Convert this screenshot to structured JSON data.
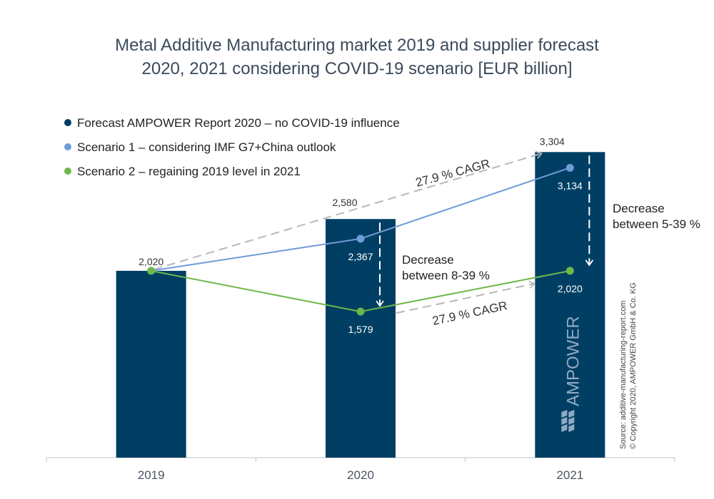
{
  "chart_data": {
    "type": "bar",
    "title_line1": "Metal Additive Manufacturing market 2019 and supplier forecast",
    "title_line2": "2020, 2021 considering COVID-19 scenario [EUR billion]",
    "categories": [
      "2019",
      "2020",
      "2021"
    ],
    "ylim": [
      0,
      4000
    ],
    "grid": false,
    "legend_position": "top-left",
    "series": [
      {
        "name": "Forecast AMPOWER Report 2020 – no COVID-19 influence",
        "kind": "bar",
        "color": "#003f63",
        "values": [
          2020,
          2580,
          3304
        ],
        "labels": [
          "2,020",
          "2,580",
          "3,304"
        ]
      },
      {
        "name": "Scenario 1 – considering IMF G7+China outlook",
        "kind": "line",
        "color": "#6f9bd8",
        "values": [
          2020,
          2367,
          3134
        ],
        "labels": [
          "",
          "2,367",
          "3,134"
        ]
      },
      {
        "name": "Scenario 2 – regaining 2019 level in 2021",
        "kind": "line",
        "color": "#6db84a",
        "values": [
          2020,
          1579,
          2020
        ],
        "labels": [
          "",
          "1,579",
          "2,020"
        ]
      }
    ],
    "annotations": {
      "cagr_upper": "27.9 % CAGR",
      "cagr_lower": "27.9 % CAGR",
      "decrease_2020_line1": "Decrease",
      "decrease_2020_line2": "between 8-39 %",
      "decrease_2021_line1": "Decrease",
      "decrease_2021_line2": "between 5-39 %"
    },
    "source_line1": "Source: additive-manufacturing-report.com",
    "source_line2": "© Copyright 2020, AMPOWER GmbH & Co. KG",
    "logo_text": "AMPOWER"
  }
}
